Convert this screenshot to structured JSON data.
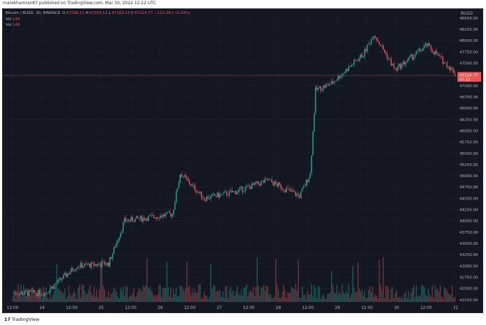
{
  "header": {
    "published_text": "marekhamran87 published on TradingView.com, Mar 30, 2022 12:22 UTC"
  },
  "legend": {
    "symbol": "Bitcoin / BUSD, 30, BINANCE",
    "open_label": "O",
    "open": "47338.11",
    "high_label": "H",
    "high": "47359.13",
    "low_label": "L",
    "low": "47163.15",
    "close_label": "C",
    "close": "47224.77",
    "change": "−113.34 (−0.24%)",
    "vol_label": "Vol",
    "vol_value": "149",
    "vol2_label": "Vol",
    "vol2_value": "149"
  },
  "price_axis": {
    "currency": "BUSD",
    "labels": [
      "48500.00",
      "48250.00",
      "48000.00",
      "47750.00",
      "47500.00",
      "47250.00",
      "47000.00",
      "46750.00",
      "46500.00",
      "46250.00",
      "46000.00",
      "45750.00",
      "45500.00",
      "45250.00",
      "45000.00",
      "44750.00",
      "44500.00",
      "44250.00",
      "44000.00",
      "43750.00",
      "43500.00",
      "43250.00",
      "43000.00",
      "42750.00",
      "42500.00",
      "42250.00"
    ],
    "current_price": "47224.77",
    "countdown": "07:13"
  },
  "time_axis": {
    "labels": [
      "12:00",
      "24",
      "12:00",
      "25",
      "12:00",
      "26",
      "12:00",
      "27",
      "12:00",
      "28",
      "12:00",
      "29",
      "12:00",
      "30",
      "12:00",
      "31"
    ]
  },
  "footer": {
    "brand_mark": "17",
    "brand_name": "TradingView"
  },
  "colors": {
    "background": "#131722",
    "up": "#26a69a",
    "down": "#ef5350",
    "grid": "#1e222d",
    "axis_text": "#b2b5be"
  },
  "chart_data": {
    "type": "candlestick",
    "symbol": "Bitcoin / BUSD",
    "interval": "30",
    "ylim": [
      42200,
      48700
    ],
    "grid": true,
    "key_levels": [
      {
        "time": "23 12:00",
        "close": 42400
      },
      {
        "time": "24 00:00",
        "close": 43000
      },
      {
        "time": "24 12:00",
        "close": 43050
      },
      {
        "time": "24 18:00",
        "close": 44000
      },
      {
        "time": "25 12:00",
        "close": 44150
      },
      {
        "time": "25 15:00",
        "close": 45050
      },
      {
        "time": "26 00:00",
        "close": 44500
      },
      {
        "time": "26 12:00",
        "close": 44650
      },
      {
        "time": "27 00:00",
        "close": 44900
      },
      {
        "time": "27 12:00",
        "close": 44550
      },
      {
        "time": "27 16:00",
        "close": 45050
      },
      {
        "time": "27 18:00",
        "close": 46900
      },
      {
        "time": "28 00:00",
        "close": 47050
      },
      {
        "time": "28 12:00",
        "close": 47700
      },
      {
        "time": "28 16:00",
        "close": 48150
      },
      {
        "time": "29 00:00",
        "close": 47350
      },
      {
        "time": "29 12:00",
        "close": 47900
      },
      {
        "time": "30 00:00",
        "close": 47200
      },
      {
        "time": "30 12:00",
        "close": 47224.77
      }
    ]
  }
}
